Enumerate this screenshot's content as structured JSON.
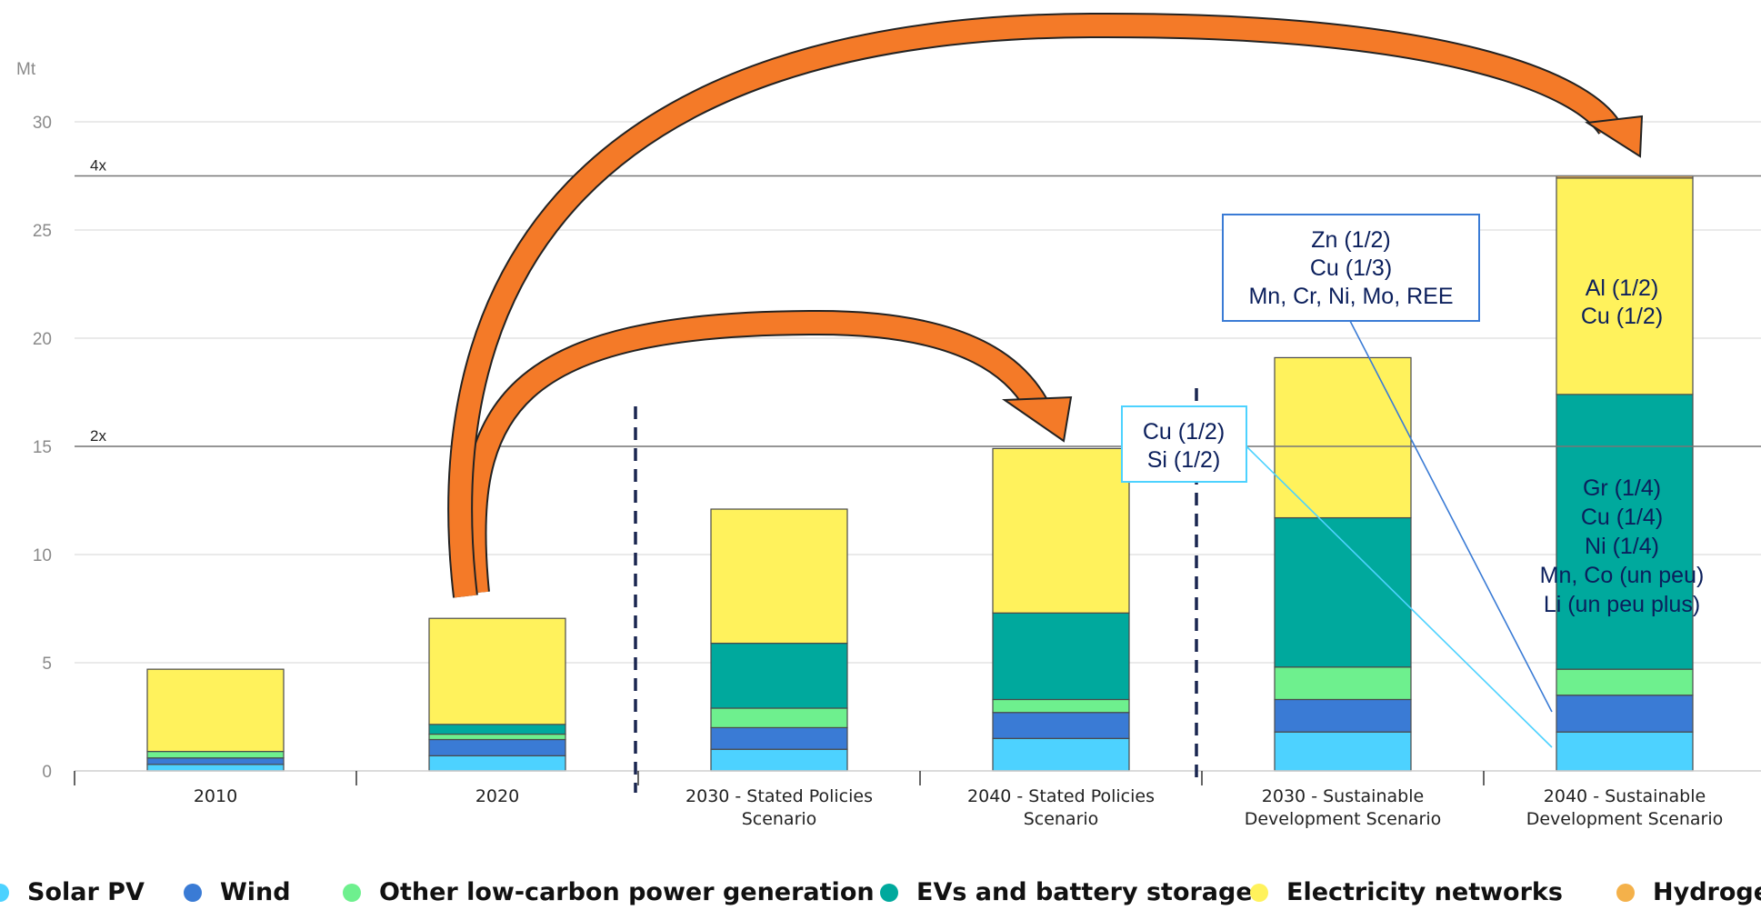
{
  "chart_data": {
    "type": "bar",
    "stacked": true,
    "ylabel": "Mt",
    "ylim": [
      0,
      30
    ],
    "yticks": [
      0,
      5,
      10,
      15,
      20,
      25,
      30
    ],
    "grid": true,
    "categories": [
      [
        "2010"
      ],
      [
        "2020"
      ],
      [
        "2030 - Stated Policies",
        "Scenario"
      ],
      [
        "2040 - Stated Policies",
        "Scenario"
      ],
      [
        "2030 - Sustainable",
        "Development Scenario"
      ],
      [
        "2040 - Sustainable",
        "Development Scenario"
      ]
    ],
    "series": [
      {
        "name": "Solar PV",
        "color": "#4dd2ff",
        "values": [
          0.3,
          0.7,
          1.0,
          1.5,
          1.8,
          1.8
        ]
      },
      {
        "name": "Wind",
        "color": "#3a7bd5",
        "values": [
          0.3,
          0.75,
          1.0,
          1.2,
          1.5,
          1.7
        ]
      },
      {
        "name": "Other low-carbon power generation",
        "color": "#6ef08e",
        "values": [
          0.3,
          0.25,
          0.9,
          0.6,
          1.5,
          1.2
        ]
      },
      {
        "name": "EVs and battery storage",
        "color": "#00a99d",
        "values": [
          0.0,
          0.45,
          3.0,
          4.0,
          6.9,
          12.7
        ]
      },
      {
        "name": "Electricity networks",
        "color": "#fff25c",
        "values": [
          3.8,
          4.9,
          6.2,
          7.6,
          7.4,
          10.0
        ]
      },
      {
        "name": "Hydrogen",
        "color": "#f4b14a",
        "values": [
          0,
          0,
          0,
          0,
          0,
          0.1
        ]
      }
    ],
    "reference_lines": [
      {
        "label": "4x",
        "y": 27.5
      },
      {
        "label": "2x",
        "y": 15.0
      }
    ],
    "annotations": [
      {
        "lines": [
          "Zn (1/2)",
          "Cu (1/3)",
          "Mn, Cr, Ni, Mo, REE"
        ],
        "border_color": "#3a7bd5"
      },
      {
        "lines": [
          "Cu (1/2)",
          "Si (1/2)"
        ],
        "border_color": "#4dd2ff"
      },
      {
        "lines": [
          "Al (1/2)",
          "Cu (1/2)"
        ]
      },
      {
        "lines": [
          "Gr (1/4)",
          "Cu (1/4)",
          "Ni (1/4)",
          "Mn, Co (un peu)",
          "Li (un peu plus)"
        ]
      }
    ],
    "arrows": [
      {
        "from": "2020",
        "to": "2040 - Stated Policies Scenario",
        "color": "#f47a28"
      },
      {
        "from": "2020",
        "to": "2040 - Sustainable Development Scenario",
        "color": "#f47a28"
      }
    ],
    "legend_position": "bottom"
  }
}
